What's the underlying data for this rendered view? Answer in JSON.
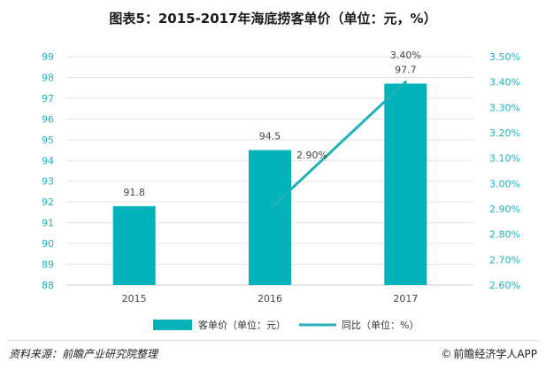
{
  "title": "图表5：2015-2017年海底捞客单价（单位：元，%）",
  "source": "资料来源：前瞻产业研究院整理",
  "brand": "前瞻经济学人APP",
  "brand_icon": "copyright-icon",
  "colors": {
    "bar": "#00b3b8",
    "line": "#20b2b8",
    "axis_text": "#20b2b8",
    "grid": "#e3e3e3"
  },
  "chart_data": {
    "type": "bar",
    "categories": [
      "2015",
      "2016",
      "2017"
    ],
    "series": [
      {
        "name": "客单价（单位：元）",
        "type": "bar",
        "axis": "left",
        "values": [
          91.8,
          94.5,
          97.7
        ],
        "labels": [
          "91.8",
          "94.5",
          "97.7"
        ]
      },
      {
        "name": "同比（单位：%）",
        "type": "line",
        "axis": "right",
        "values": [
          null,
          2.9,
          3.4
        ],
        "labels": [
          "",
          "2.90%",
          "3.40%"
        ]
      }
    ],
    "y_left": {
      "range": [
        88,
        99
      ],
      "ticks": [
        "88",
        "89",
        "90",
        "91",
        "92",
        "93",
        "94",
        "95",
        "96",
        "97",
        "98",
        "99"
      ]
    },
    "y_right": {
      "range": [
        2.6,
        3.5
      ],
      "ticks": [
        "2.60%",
        "2.70%",
        "2.80%",
        "2.90%",
        "3.00%",
        "3.10%",
        "3.20%",
        "3.30%",
        "3.40%",
        "3.50%"
      ]
    },
    "grid": true,
    "legend_position": "bottom"
  }
}
